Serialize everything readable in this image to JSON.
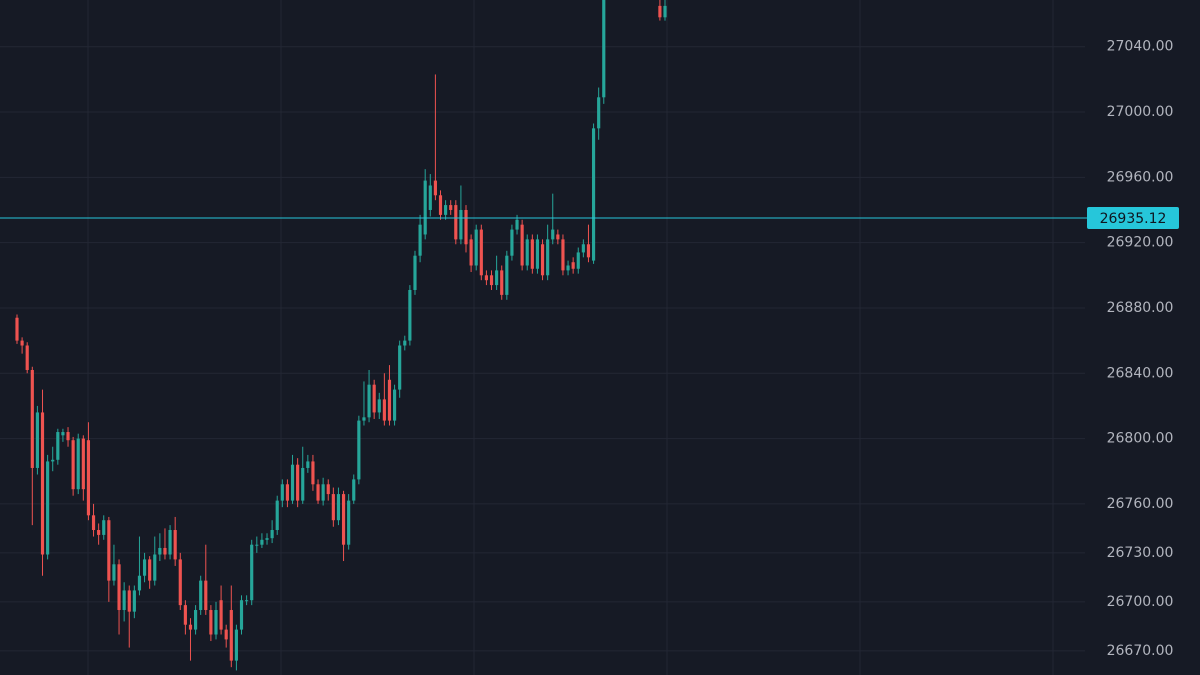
{
  "chart_data": {
    "type": "candlestick",
    "open": [
      26874,
      26860,
      26857,
      26842,
      26782,
      26816,
      26729,
      26786,
      26787,
      26802,
      26804,
      26799,
      26769,
      26800,
      26799,
      26753,
      26744,
      26741,
      26750,
      26713,
      26723,
      26695,
      26707,
      26694,
      26707,
      26716,
      26726,
      26713,
      26729,
      26733,
      26729,
      26744,
      26726,
      26698,
      26686,
      26683,
      26695,
      26713,
      26695,
      26680,
      26701,
      26683,
      26695,
      26664,
      26683,
      26701,
      26701,
      26735,
      26735,
      26738,
      26739,
      26744,
      26762,
      26772,
      26762,
      26784,
      26762,
      26782,
      26786,
      26772,
      26762,
      26772,
      26766,
      26750,
      26766,
      26735,
      26762,
      26775,
      26811,
      26813,
      26833,
      26816,
      26824,
      26836,
      26811,
      26830,
      26857,
      26860,
      26891,
      26912,
      26925,
      26940,
      26958,
      26949,
      26937,
      26943,
      26943,
      26922,
      26940,
      26922,
      26906,
      26928,
      26900,
      26900,
      26894,
      26903,
      26888,
      26912,
      26928,
      26931,
      26906,
      26922,
      26904,
      26919,
      26900,
      26922,
      26925,
      26922,
      26903,
      26908,
      26904,
      26914,
      26919,
      26909,
      26990,
      27009,
      null,
      null,
      null,
      null,
      null,
      null,
      null,
      null,
      null,
      null,
      27065,
      27058
    ],
    "high": [
      26876,
      26862,
      26859,
      26844,
      26820,
      26830,
      26790,
      26795,
      26806,
      26806,
      26807,
      26801,
      26803,
      26802,
      26810,
      26760,
      26748,
      26753,
      26752,
      26735,
      26726,
      26712,
      26710,
      26710,
      26740,
      26730,
      26728,
      26740,
      26742,
      26745,
      26747,
      26752,
      26730,
      26701,
      26690,
      26698,
      26716,
      26735,
      26698,
      26700,
      26710,
      26686,
      26710,
      26686,
      26704,
      26704,
      26738,
      26740,
      26742,
      26742,
      26750,
      26765,
      26775,
      26775,
      26790,
      26788,
      26795,
      26790,
      26790,
      26775,
      26776,
      26775,
      26770,
      26770,
      26768,
      26766,
      26778,
      26814,
      26835,
      26842,
      26836,
      26828,
      26840,
      26845,
      26833,
      26860,
      26863,
      26894,
      26915,
      26937,
      26965,
      26962,
      27023,
      26952,
      26946,
      26946,
      26946,
      26955,
      26943,
      26925,
      26931,
      26931,
      26903,
      26903,
      26912,
      26906,
      26915,
      26931,
      26937,
      26934,
      26925,
      26925,
      26925,
      26922,
      26931,
      26950,
      26928,
      26925,
      26909,
      26911,
      26917,
      26922,
      26931,
      26993,
      27015,
      27080,
      null,
      null,
      null,
      null,
      null,
      null,
      null,
      null,
      null,
      null,
      27070,
      27070
    ],
    "low": [
      26858,
      26852,
      26840,
      26747,
      26778,
      26716,
      26726,
      26780,
      26784,
      26798,
      26795,
      26765,
      26766,
      26762,
      26750,
      26740,
      26735,
      26738,
      26700,
      26710,
      26680,
      26688,
      26672,
      26690,
      26704,
      26712,
      26708,
      26710,
      26725,
      26726,
      26726,
      26722,
      26695,
      26680,
      26664,
      26680,
      26692,
      26692,
      26676,
      26677,
      26680,
      26672,
      26660,
      26658,
      26680,
      26698,
      26698,
      26730,
      26733,
      26735,
      26736,
      26741,
      26758,
      26758,
      26760,
      26758,
      26760,
      26779,
      26768,
      26760,
      26759,
      26762,
      26746,
      26747,
      26725,
      26732,
      26760,
      26772,
      26808,
      26810,
      26812,
      26812,
      26808,
      26808,
      26808,
      26825,
      26854,
      26857,
      26888,
      26908,
      26922,
      26936,
      26946,
      26934,
      26934,
      26937,
      26919,
      26919,
      26914,
      26902,
      26903,
      26897,
      26894,
      26891,
      26891,
      26885,
      26885,
      26909,
      26925,
      26903,
      26903,
      26901,
      26901,
      26897,
      26897,
      26919,
      26919,
      26900,
      26900,
      26901,
      26901,
      26911,
      26908,
      26907,
      26983,
      27005,
      null,
      null,
      null,
      null,
      null,
      null,
      null,
      null,
      null,
      null,
      27056,
      27056
    ],
    "close": [
      26860,
      26857,
      26842,
      26782,
      26816,
      26729,
      26786,
      26787,
      26804,
      26804,
      26799,
      26769,
      26800,
      26769,
      26753,
      26744,
      26741,
      26750,
      26713,
      26723,
      26695,
      26707,
      26694,
      26707,
      26716,
      26726,
      26713,
      26729,
      26733,
      26729,
      26744,
      26726,
      26698,
      26686,
      26683,
      26695,
      26713,
      26695,
      26680,
      26695,
      26683,
      26677,
      26664,
      26683,
      26701,
      26701,
      26735,
      26735,
      26738,
      26739,
      26744,
      26762,
      26772,
      26762,
      26784,
      26762,
      26782,
      26786,
      26772,
      26762,
      26772,
      26766,
      26750,
      26766,
      26735,
      26762,
      26775,
      26811,
      26813,
      26833,
      26816,
      26824,
      26811,
      26811,
      26830,
      26857,
      26860,
      26891,
      26912,
      26931,
      26958,
      26955,
      26949,
      26937,
      26943,
      26940,
      26922,
      26940,
      26919,
      26906,
      26928,
      26900,
      26897,
      26894,
      26903,
      26888,
      26912,
      26928,
      26934,
      26906,
      26922,
      26904,
      26922,
      26900,
      26922,
      26928,
      26922,
      26903,
      26906,
      26904,
      26914,
      26919,
      26911,
      26990,
      27009,
      27075,
      null,
      null,
      null,
      null,
      null,
      null,
      null,
      null,
      null,
      null,
      27058,
      27065
    ],
    "up_color": "#26a69a",
    "down_color": "#ef5350",
    "ylim": [
      26655.2,
      27068.6
    ],
    "yticks": [
      {
        "value": 26670,
        "label": "26670.00"
      },
      {
        "value": 26700,
        "label": "26700.00"
      },
      {
        "value": 26730,
        "label": "26730.00"
      },
      {
        "value": 26760,
        "label": "26760.00"
      },
      {
        "value": 26800,
        "label": "26800.00"
      },
      {
        "value": 26840,
        "label": "26840.00"
      },
      {
        "value": 26880,
        "label": "26880.00"
      },
      {
        "value": 26920,
        "label": "26920.00"
      },
      {
        "value": 26960,
        "label": "26960.00"
      },
      {
        "value": 27000,
        "label": "27000.00"
      },
      {
        "value": 27040,
        "label": "27040.00"
      }
    ],
    "price_line": 26935.12,
    "price_line_color": "#26c6da",
    "grid": true
  }
}
